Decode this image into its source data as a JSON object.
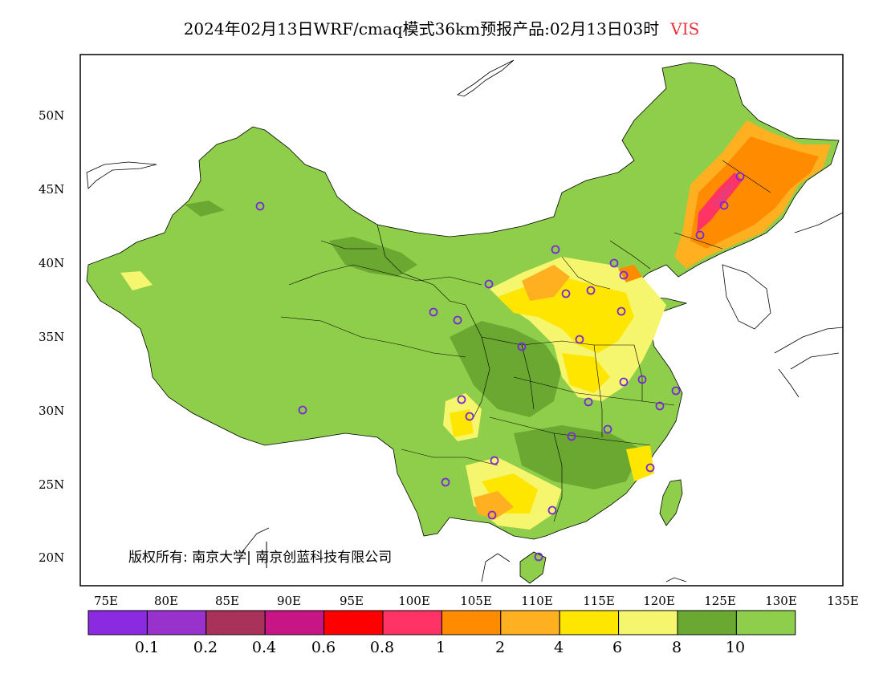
{
  "title": {
    "main": "2024年02月13日WRF/cmaq模式36km预报产品:02月13日03时",
    "variable": "VIS",
    "variable_color": "#e8323c"
  },
  "axes": {
    "lat_labels": [
      "50N",
      "45N",
      "40N",
      "35N",
      "30N",
      "25N",
      "20N"
    ],
    "lon_labels": [
      "75E",
      "80E",
      "85E",
      "90E",
      "95E",
      "100E",
      "105E",
      "110E",
      "115E",
      "120E",
      "125E",
      "130E",
      "135E"
    ]
  },
  "copyright": "版权所有: 南京大学| 南京创蓝科技有限公司",
  "colorbar": {
    "colors": [
      "#8a2be2",
      "#9932cc",
      "#a8325a",
      "#c71585",
      "#ff0000",
      "#ff3366",
      "#ff8c00",
      "#ffb020",
      "#ffe600",
      "#f5f56e",
      "#6aa832",
      "#8fce4a"
    ],
    "labels": [
      "0.1",
      "0.2",
      "0.4",
      "0.6",
      "0.8",
      "1",
      "2",
      "4",
      "6",
      "8",
      "10"
    ]
  },
  "map": {
    "palette": {
      "good": "#8fce4a",
      "good_dark": "#6aa832",
      "light_yellow": "#f5f56e",
      "yellow": "#ffe600",
      "orange_light": "#ffb020",
      "orange": "#ff8c00",
      "red_pink": "#ff3366",
      "magenta": "#e83c7a",
      "station_marker": "#7a2ad4"
    }
  }
}
